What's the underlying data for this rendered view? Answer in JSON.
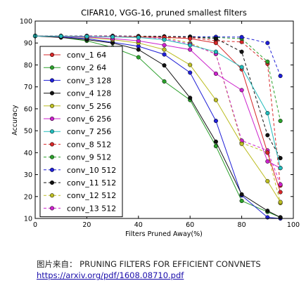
{
  "chart_data": {
    "type": "line",
    "title": "CIFAR10, VGG-16, pruned smallest filters",
    "xlabel": "Filters Pruned Away(%)",
    "ylabel": "Accuracy",
    "xlim": [
      0,
      100
    ],
    "ylim": [
      10,
      100
    ],
    "xticks": [
      0,
      20,
      40,
      60,
      80,
      100
    ],
    "yticks": [
      10,
      20,
      30,
      40,
      50,
      60,
      70,
      80,
      90,
      100
    ],
    "grid": false,
    "legend_position": "lower-left",
    "x": [
      0,
      10,
      20,
      30,
      40,
      50,
      60,
      70,
      80,
      90,
      95
    ],
    "series": [
      {
        "name": "conv_1 64",
        "color": "#d62728",
        "style": "solid",
        "values": [
          93.2,
          93.1,
          93.0,
          92.9,
          92.8,
          92.6,
          92.0,
          90.0,
          78.0,
          40.0,
          22.0
        ]
      },
      {
        "name": "conv_2 64",
        "color": "#2ca02c",
        "style": "solid",
        "values": [
          93.2,
          92.6,
          91.0,
          88.0,
          83.5,
          72.5,
          64.0,
          43.0,
          18.0,
          13.0,
          10.5
        ]
      },
      {
        "name": "conv_3 128",
        "color": "#1f1fd6",
        "style": "solid",
        "values": [
          93.2,
          92.8,
          92.0,
          90.3,
          88.5,
          84.8,
          76.5,
          54.5,
          20.5,
          10.5,
          10.0
        ]
      },
      {
        "name": "conv_4 128",
        "color": "#111111",
        "style": "solid",
        "values": [
          93.2,
          92.5,
          91.5,
          90.0,
          87.0,
          79.8,
          65.0,
          45.0,
          21.0,
          13.5,
          10.5
        ]
      },
      {
        "name": "conv_5 256",
        "color": "#bcbd22",
        "style": "solid",
        "values": [
          93.2,
          93.0,
          92.5,
          91.5,
          90.0,
          87.0,
          80.0,
          64.0,
          44.0,
          27.0,
          17.5
        ]
      },
      {
        "name": "conv_6 256",
        "color": "#cc22cc",
        "style": "solid",
        "values": [
          93.2,
          93.0,
          92.7,
          92.0,
          91.0,
          89.0,
          87.0,
          76.0,
          68.5,
          36.0,
          33.0
        ]
      },
      {
        "name": "conv_7 256",
        "color": "#22bbbb",
        "style": "solid",
        "values": [
          93.2,
          93.1,
          93.0,
          92.8,
          92.5,
          91.5,
          89.0,
          86.0,
          79.0,
          58.0,
          33.0
        ]
      },
      {
        "name": "conv_8 512",
        "color": "#d62728",
        "style": "dashed",
        "values": [
          93.2,
          93.2,
          93.2,
          93.1,
          93.0,
          92.9,
          92.5,
          91.0,
          90.5,
          80.5,
          25.0
        ]
      },
      {
        "name": "conv_9 512",
        "color": "#2ca02c",
        "style": "dashed",
        "values": [
          93.2,
          93.2,
          93.2,
          93.2,
          93.1,
          93.0,
          92.8,
          92.5,
          92.0,
          81.5,
          54.5
        ]
      },
      {
        "name": "conv_10 512",
        "color": "#1f1fd6",
        "style": "dashed",
        "values": [
          93.2,
          93.2,
          93.2,
          93.2,
          93.1,
          93.0,
          92.9,
          92.8,
          92.7,
          90.0,
          75.0
        ]
      },
      {
        "name": "conv_11 512",
        "color": "#111111",
        "style": "dashed",
        "values": [
          93.2,
          93.2,
          93.2,
          93.2,
          93.1,
          93.0,
          92.8,
          92.0,
          86.0,
          48.0,
          37.5
        ]
      },
      {
        "name": "conv_12 512",
        "color": "#bcbd22",
        "style": "dashed",
        "values": [
          93.2,
          93.2,
          93.2,
          93.1,
          93.0,
          92.5,
          90.0,
          85.0,
          44.5,
          40.0,
          17.0
        ]
      },
      {
        "name": "conv_13 512",
        "color": "#cc22cc",
        "style": "dashed",
        "values": [
          93.2,
          93.2,
          93.2,
          93.1,
          92.9,
          92.0,
          89.5,
          85.0,
          45.5,
          41.0,
          25.5
        ]
      }
    ]
  },
  "caption": {
    "text": "图片来自： PRUNING FILTERS FOR EFFICIENT CONVNETS",
    "link": "https://arxiv.org/pdf/1608.08710.pdf"
  }
}
